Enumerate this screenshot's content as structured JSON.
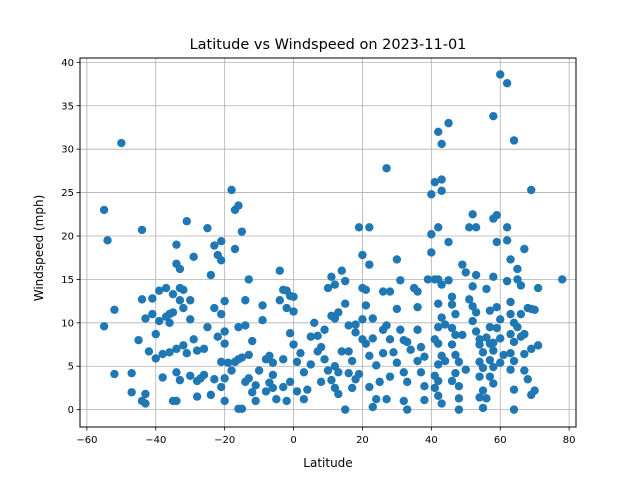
{
  "chart_data": {
    "type": "scatter",
    "title": "Latitude vs Windspeed on 2023-11-01",
    "xlabel": "Latitude",
    "ylabel": "Windspeed (mph)",
    "xlim": [
      -62,
      82
    ],
    "ylim": [
      -2,
      40.5
    ],
    "xticks": [
      -60,
      -40,
      -20,
      0,
      20,
      40,
      60,
      80
    ],
    "yticks": [
      0,
      5,
      10,
      15,
      20,
      25,
      30,
      35,
      40
    ],
    "grid": true,
    "marker_color": "#1f77b4",
    "points": [
      [
        -55,
        23
      ],
      [
        -54,
        19.5
      ],
      [
        -55,
        9.6
      ],
      [
        -52,
        11.5
      ],
      [
        -52,
        4.1
      ],
      [
        -50,
        30.7
      ],
      [
        -47,
        4.2
      ],
      [
        -47,
        2
      ],
      [
        -44,
        20.7
      ],
      [
        -44,
        12.7
      ],
      [
        -45,
        8
      ],
      [
        -43,
        1.8
      ],
      [
        -44,
        1
      ],
      [
        -43,
        0.7
      ],
      [
        -42,
        6.7
      ],
      [
        -41,
        11
      ],
      [
        -43,
        10.5
      ],
      [
        -39,
        13.7
      ],
      [
        -40,
        8.7
      ],
      [
        -40,
        5.9
      ],
      [
        -39,
        10.2
      ],
      [
        -38,
        6.4
      ],
      [
        -37,
        10.7
      ],
      [
        -36,
        11
      ],
      [
        -37,
        14
      ],
      [
        -34,
        19
      ],
      [
        -34,
        16.8
      ],
      [
        -33,
        16.2
      ],
      [
        -35,
        13.3
      ],
      [
        -33,
        12.6
      ],
      [
        -34,
        7
      ],
      [
        -34,
        4.3
      ],
      [
        -33,
        3.4
      ],
      [
        -35,
        1
      ],
      [
        -34,
        1
      ],
      [
        -31,
        21.7
      ],
      [
        -32,
        13.8
      ],
      [
        -32,
        11.7
      ],
      [
        -30,
        12.6
      ],
      [
        -30,
        10.4
      ],
      [
        -29,
        17.6
      ],
      [
        -29,
        8.1
      ],
      [
        -28,
        6.8
      ],
      [
        -28,
        3.3
      ],
      [
        -27,
        3.6
      ],
      [
        -26,
        4
      ],
      [
        -25,
        20.9
      ],
      [
        -24,
        15.5
      ],
      [
        -25,
        9.5
      ],
      [
        -23,
        18.9
      ],
      [
        -22,
        17.8
      ],
      [
        -23,
        11.7
      ],
      [
        -22,
        8.4
      ],
      [
        -21,
        19.4
      ],
      [
        -21,
        17.2
      ],
      [
        -20,
        12.5
      ],
      [
        -21,
        11
      ],
      [
        -20,
        9
      ],
      [
        -20,
        7.6
      ],
      [
        -21,
        5.5
      ],
      [
        -20,
        3.6
      ],
      [
        -21,
        2.6
      ],
      [
        -20,
        1
      ],
      [
        -18,
        25.3
      ],
      [
        -17,
        23
      ],
      [
        -17,
        18.5
      ],
      [
        -16,
        23.5
      ],
      [
        -15,
        20.5
      ],
      [
        -14,
        12.6
      ],
      [
        -13,
        15
      ],
      [
        -14,
        9.7
      ],
      [
        -16,
        9.5
      ],
      [
        -17,
        5.5
      ],
      [
        -16,
        5.8
      ],
      [
        -15,
        6
      ],
      [
        -13,
        6.3
      ],
      [
        -12,
        7.9
      ],
      [
        -14,
        3.2
      ],
      [
        -13,
        3.6
      ],
      [
        -16,
        0.1
      ],
      [
        -15,
        0.1
      ],
      [
        -12,
        2
      ],
      [
        -11,
        1
      ],
      [
        -9,
        12
      ],
      [
        -9,
        10.3
      ],
      [
        -8,
        5.8
      ],
      [
        -7,
        6.2
      ],
      [
        -6,
        5.4
      ],
      [
        -7,
        3.1
      ],
      [
        -6,
        4
      ],
      [
        -6,
        2.5
      ],
      [
        -5,
        1.2
      ],
      [
        -4,
        16
      ],
      [
        -4,
        12.6
      ],
      [
        -3,
        13.8
      ],
      [
        -2,
        13.7
      ],
      [
        -1,
        13.1
      ],
      [
        -2,
        11.7
      ],
      [
        -1,
        8.8
      ],
      [
        0,
        13
      ],
      [
        0,
        7.5
      ],
      [
        1,
        5.5
      ],
      [
        0,
        11.3
      ],
      [
        -1,
        3.2
      ],
      [
        -2,
        1
      ],
      [
        -3,
        2.6
      ],
      [
        2,
        6.5
      ],
      [
        3,
        4.3
      ],
      [
        4,
        2.3
      ],
      [
        5,
        5.2
      ],
      [
        6,
        10
      ],
      [
        7,
        8.5
      ],
      [
        8,
        7.2
      ],
      [
        9,
        5.8
      ],
      [
        10,
        4.5
      ],
      [
        10,
        14
      ],
      [
        11,
        10.8
      ],
      [
        11,
        15.3
      ],
      [
        12,
        14.4
      ],
      [
        12,
        10.5
      ],
      [
        13,
        11.2
      ],
      [
        14,
        16
      ],
      [
        15,
        14.8
      ],
      [
        15,
        12.2
      ],
      [
        16,
        9.7
      ],
      [
        16,
        6.7
      ],
      [
        14,
        6.7
      ],
      [
        12,
        5
      ],
      [
        13,
        4.3
      ],
      [
        11,
        3.4
      ],
      [
        12,
        2.5
      ],
      [
        13,
        1.8
      ],
      [
        15,
        0
      ],
      [
        16,
        4.2
      ],
      [
        17,
        5.6
      ],
      [
        17,
        2.5
      ],
      [
        18,
        3.5
      ],
      [
        18,
        9.8
      ],
      [
        19,
        21
      ],
      [
        20,
        17.8
      ],
      [
        20,
        14
      ],
      [
        21,
        13.8
      ],
      [
        21,
        12
      ],
      [
        20,
        10.4
      ],
      [
        20,
        8.1
      ],
      [
        21,
        7.6
      ],
      [
        22,
        21
      ],
      [
        22,
        16.7
      ],
      [
        23,
        10.5
      ],
      [
        23,
        8.2
      ],
      [
        22,
        6.2
      ],
      [
        22,
        2.6
      ],
      [
        23,
        0.3
      ],
      [
        24,
        1.2
      ],
      [
        25,
        3.2
      ],
      [
        26,
        9.2
      ],
      [
        27,
        27.8
      ],
      [
        26,
        13.6
      ],
      [
        28,
        13.6
      ],
      [
        27,
        9.7
      ],
      [
        28,
        8.1
      ],
      [
        29,
        6.6
      ],
      [
        28,
        3.8
      ],
      [
        27,
        1.2
      ],
      [
        30,
        17.3
      ],
      [
        31,
        14.9
      ],
      [
        30,
        11.6
      ],
      [
        31,
        9.2
      ],
      [
        32,
        8
      ],
      [
        32,
        4.3
      ],
      [
        33,
        3.2
      ],
      [
        32,
        1
      ],
      [
        33,
        0
      ],
      [
        35,
        14
      ],
      [
        36,
        13.6
      ],
      [
        36,
        11.8
      ],
      [
        36,
        9.2
      ],
      [
        37,
        7.2
      ],
      [
        38,
        6.1
      ],
      [
        37,
        4.3
      ],
      [
        38,
        2.7
      ],
      [
        38,
        1.1
      ],
      [
        39,
        15
      ],
      [
        40,
        20.2
      ],
      [
        40,
        18.1
      ],
      [
        40,
        24.8
      ],
      [
        41,
        26.2
      ],
      [
        42,
        32
      ],
      [
        43,
        30.6
      ],
      [
        43,
        26.5
      ],
      [
        43,
        25.2
      ],
      [
        42,
        21
      ],
      [
        41,
        15
      ],
      [
        42,
        15
      ],
      [
        43,
        14.4
      ],
      [
        42,
        12.2
      ],
      [
        43,
        10.6
      ],
      [
        42,
        9.5
      ],
      [
        41,
        8.1
      ],
      [
        42,
        7.6
      ],
      [
        43,
        6.2
      ],
      [
        42,
        5.2
      ],
      [
        41,
        3.9
      ],
      [
        42,
        3.3
      ],
      [
        41,
        2.5
      ],
      [
        42,
        1.6
      ],
      [
        43,
        0.7
      ],
      [
        44,
        9.8
      ],
      [
        45,
        33
      ],
      [
        45,
        19.3
      ],
      [
        45,
        14.9
      ],
      [
        46,
        13
      ],
      [
        46,
        12.1
      ],
      [
        47,
        11
      ],
      [
        46,
        9.4
      ],
      [
        47,
        8.6
      ],
      [
        46,
        7.5
      ],
      [
        47,
        6.3
      ],
      [
        48,
        5.5
      ],
      [
        47,
        4.2
      ],
      [
        46,
        3.3
      ],
      [
        48,
        2.7
      ],
      [
        48,
        1.3
      ],
      [
        48,
        0
      ],
      [
        49,
        16.7
      ],
      [
        50,
        15.8
      ],
      [
        51,
        21
      ],
      [
        52,
        22.5
      ],
      [
        53,
        21
      ],
      [
        53,
        15.5
      ],
      [
        52,
        14.2
      ],
      [
        51,
        12.7
      ],
      [
        52,
        11.9
      ],
      [
        53,
        11.2
      ],
      [
        52,
        10.2
      ],
      [
        53,
        9
      ],
      [
        54,
        8.1
      ],
      [
        54,
        7.5
      ],
      [
        55,
        6.6
      ],
      [
        54,
        5.5
      ],
      [
        55,
        4.8
      ],
      [
        54,
        3.8
      ],
      [
        55,
        2.2
      ],
      [
        54,
        1.4
      ],
      [
        55,
        0.2
      ],
      [
        56,
        13.9
      ],
      [
        57,
        11.4
      ],
      [
        57,
        9.5
      ],
      [
        56,
        8.3
      ],
      [
        57,
        7.6
      ],
      [
        58,
        6.8
      ],
      [
        57,
        5.7
      ],
      [
        58,
        4.9
      ],
      [
        57,
        3.8
      ],
      [
        58,
        3
      ],
      [
        56,
        1.3
      ],
      [
        58,
        33.8
      ],
      [
        58,
        22
      ],
      [
        59,
        22.4
      ],
      [
        59,
        19.3
      ],
      [
        58,
        15.3
      ],
      [
        59,
        11.8
      ],
      [
        60,
        10.4
      ],
      [
        59,
        9.4
      ],
      [
        60,
        8.2
      ],
      [
        60,
        38.6
      ],
      [
        62,
        37.6
      ],
      [
        62,
        21
      ],
      [
        62,
        19.5
      ],
      [
        63,
        17.3
      ],
      [
        62,
        14.8
      ],
      [
        63,
        12.4
      ],
      [
        63,
        11
      ],
      [
        64,
        10
      ],
      [
        63,
        8.7
      ],
      [
        64,
        7.8
      ],
      [
        63,
        6.5
      ],
      [
        64,
        5.6
      ],
      [
        63,
        4.6
      ],
      [
        64,
        2.3
      ],
      [
        64,
        0
      ],
      [
        64,
        31
      ],
      [
        65,
        16.2
      ],
      [
        65,
        15
      ],
      [
        66,
        14.3
      ],
      [
        66,
        11
      ],
      [
        65,
        9.5
      ],
      [
        66,
        8.4
      ],
      [
        67,
        18.5
      ],
      [
        67,
        8.7
      ],
      [
        68,
        11.7
      ],
      [
        67,
        6.4
      ],
      [
        67,
        4.5
      ],
      [
        68,
        3.5
      ],
      [
        69,
        25.3
      ],
      [
        69,
        11.6
      ],
      [
        70,
        11.5
      ],
      [
        69,
        7
      ],
      [
        70,
        2.2
      ],
      [
        69,
        1.7
      ],
      [
        71,
        14
      ],
      [
        71,
        7.4
      ],
      [
        78,
        15
      ],
      [
        5,
        8.4
      ],
      [
        7,
        6.7
      ],
      [
        9,
        9.2
      ],
      [
        18,
        8.9
      ],
      [
        26,
        6.5
      ],
      [
        30,
        5.4
      ],
      [
        34,
        6.9
      ],
      [
        36,
        5.6
      ],
      [
        44,
        5.6
      ],
      [
        50,
        4.6
      ],
      [
        60,
        5.4
      ],
      [
        61,
        6.3
      ],
      [
        58,
        7.7
      ],
      [
        49,
        8.6
      ],
      [
        33,
        7.8
      ],
      [
        24,
        5.1
      ],
      [
        19,
        4.1
      ],
      [
        8,
        3.2
      ],
      [
        3,
        1.2
      ],
      [
        1,
        2.1
      ],
      [
        -3,
        5.8
      ],
      [
        -10,
        4.5
      ],
      [
        -8,
        2.1
      ],
      [
        -11,
        2.8
      ],
      [
        -26,
        7
      ],
      [
        -31,
        6.5
      ],
      [
        -36,
        6.6
      ],
      [
        -38,
        3.7
      ],
      [
        -30,
        3.9
      ],
      [
        -28,
        1.5
      ],
      [
        -24,
        1.7
      ],
      [
        -23,
        3.5
      ],
      [
        -18,
        4.5
      ],
      [
        -19,
        5.4
      ],
      [
        -36,
        10
      ],
      [
        -41,
        12.8
      ],
      [
        -33,
        14
      ],
      [
        -35,
        11.2
      ],
      [
        -32,
        7.4
      ]
    ]
  }
}
